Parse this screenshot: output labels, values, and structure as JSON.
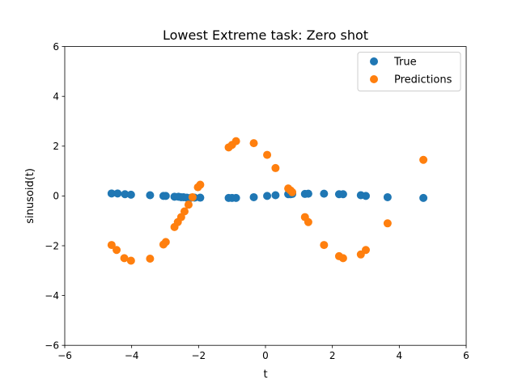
{
  "chart_data": {
    "type": "scatter",
    "title": "Lowest Extreme task: Zero shot",
    "xlabel": "t",
    "ylabel": "sinusoid(t)",
    "xlim": [
      -6,
      6
    ],
    "ylim": [
      -6,
      6
    ],
    "xticks": [
      -6,
      -4,
      -2,
      0,
      2,
      4,
      6
    ],
    "yticks": [
      -6,
      -4,
      -2,
      0,
      2,
      4,
      6
    ],
    "xtick_labels": [
      "−6",
      "−4",
      "−2",
      "0",
      "2",
      "4",
      "6"
    ],
    "ytick_labels": [
      "−6",
      "−4",
      "−2",
      "0",
      "2",
      "4",
      "6"
    ],
    "grid": false,
    "legend_position": "top-right",
    "series": [
      {
        "name": "True",
        "color": "#1f77b4",
        "points": [
          [
            -4.6,
            0.1
          ],
          [
            -4.42,
            0.1
          ],
          [
            -4.2,
            0.07
          ],
          [
            -4.02,
            0.05
          ],
          [
            -3.45,
            0.03
          ],
          [
            -3.05,
            0.0
          ],
          [
            -2.98,
            0.0
          ],
          [
            -2.72,
            -0.03
          ],
          [
            -2.6,
            -0.03
          ],
          [
            -2.52,
            -0.05
          ],
          [
            -2.45,
            -0.05
          ],
          [
            -2.35,
            -0.07
          ],
          [
            -2.22,
            -0.07
          ],
          [
            -2.12,
            -0.07
          ],
          [
            -1.95,
            -0.07
          ],
          [
            -1.1,
            -0.08
          ],
          [
            -1.0,
            -0.08
          ],
          [
            -0.88,
            -0.08
          ],
          [
            -0.35,
            -0.05
          ],
          [
            0.05,
            0.0
          ],
          [
            0.3,
            0.03
          ],
          [
            0.68,
            0.07
          ],
          [
            0.75,
            0.07
          ],
          [
            0.8,
            0.08
          ],
          [
            1.18,
            0.08
          ],
          [
            1.28,
            0.09
          ],
          [
            1.75,
            0.09
          ],
          [
            2.2,
            0.07
          ],
          [
            2.32,
            0.07
          ],
          [
            2.85,
            0.03
          ],
          [
            3.0,
            0.0
          ],
          [
            3.65,
            -0.05
          ],
          [
            4.72,
            -0.08
          ]
        ]
      },
      {
        "name": "Predictions",
        "color": "#ff7f0e",
        "points": [
          [
            -4.6,
            -1.97
          ],
          [
            -4.45,
            -2.17
          ],
          [
            -4.22,
            -2.5
          ],
          [
            -4.02,
            -2.6
          ],
          [
            -3.45,
            -2.52
          ],
          [
            -3.05,
            -1.95
          ],
          [
            -2.98,
            -1.85
          ],
          [
            -2.72,
            -1.25
          ],
          [
            -2.62,
            -1.05
          ],
          [
            -2.52,
            -0.85
          ],
          [
            -2.42,
            -0.62
          ],
          [
            -2.3,
            -0.35
          ],
          [
            -2.18,
            -0.05
          ],
          [
            -2.02,
            0.35
          ],
          [
            -1.95,
            0.45
          ],
          [
            -1.1,
            1.95
          ],
          [
            -1.0,
            2.05
          ],
          [
            -0.88,
            2.2
          ],
          [
            -0.35,
            2.12
          ],
          [
            0.05,
            1.65
          ],
          [
            0.3,
            1.12
          ],
          [
            0.68,
            0.3
          ],
          [
            0.75,
            0.22
          ],
          [
            0.8,
            0.15
          ],
          [
            1.18,
            -0.85
          ],
          [
            1.28,
            -1.05
          ],
          [
            1.75,
            -1.97
          ],
          [
            2.2,
            -2.42
          ],
          [
            2.32,
            -2.5
          ],
          [
            2.85,
            -2.35
          ],
          [
            3.0,
            -2.17
          ],
          [
            3.65,
            -1.1
          ],
          [
            4.72,
            1.45
          ]
        ]
      }
    ]
  }
}
